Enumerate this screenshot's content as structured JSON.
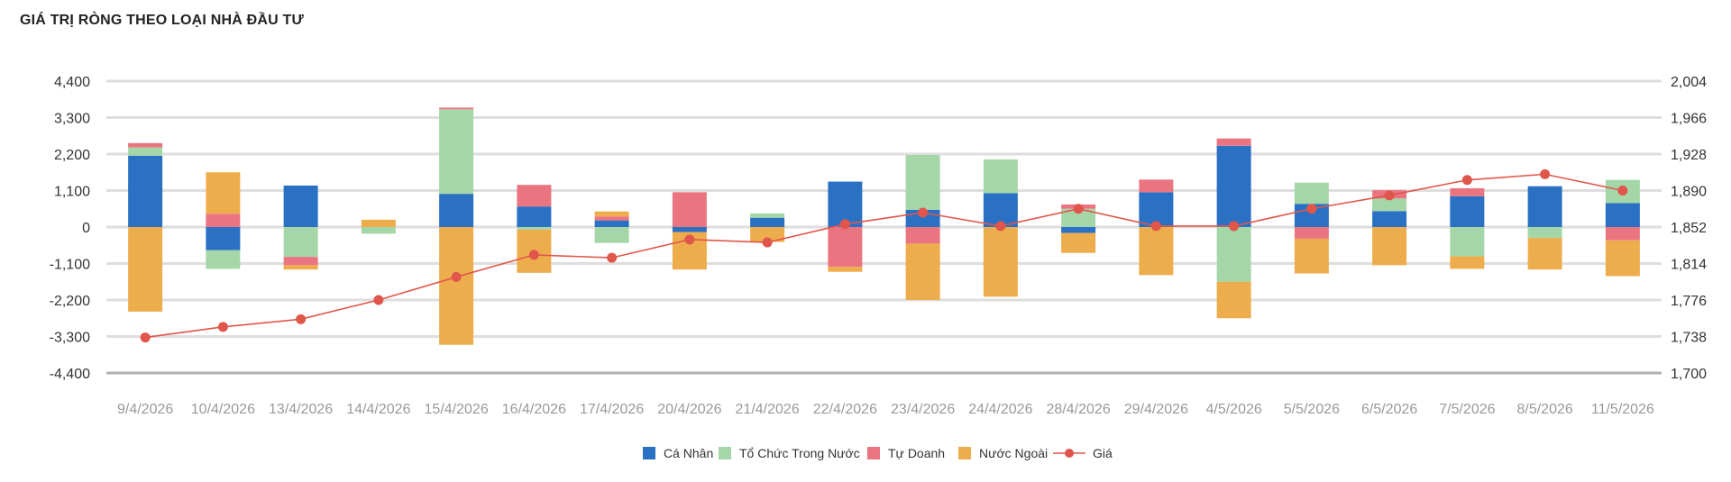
{
  "title": "GIÁ TRỊ RÒNG THEO LOẠI NHÀ ĐẦU TƯ",
  "chart_data": {
    "type": "bar",
    "stacked": true,
    "categories": [
      "9/4/2026",
      "10/4/2026",
      "13/4/2026",
      "14/4/2026",
      "15/4/2026",
      "16/4/2026",
      "17/4/2026",
      "20/4/2026",
      "21/4/2026",
      "22/4/2026",
      "23/4/2026",
      "24/4/2026",
      "28/4/2026",
      "29/4/2026",
      "4/5/2026",
      "5/5/2026",
      "6/5/2026",
      "7/5/2026",
      "8/5/2026",
      "11/5/2026"
    ],
    "y_left": {
      "ticks": [
        "4,400",
        "3,300",
        "2,200",
        "1,100",
        "0",
        "-1,100",
        "-2,200",
        "-3,300",
        "-4,400"
      ],
      "ylim": [
        -4400,
        4400
      ]
    },
    "y_right": {
      "ticks": [
        "2,004",
        "1,966",
        "1,928",
        "1,890",
        "1,852",
        "1,814",
        "1,776",
        "1,738",
        "1,700"
      ],
      "ylim": [
        1700,
        2004
      ]
    },
    "grid": true,
    "legend_position": "bottom",
    "series": [
      {
        "name": "Cá Nhân",
        "color": "#2a71c4",
        "values": [
          2150,
          -700,
          1250,
          0,
          1000,
          620,
          200,
          -150,
          280,
          1370,
          520,
          1020,
          -180,
          1050,
          2450,
          700,
          480,
          930,
          1230,
          720
        ]
      },
      {
        "name": "Tổ Chức Trong Nước",
        "color": "#a5d6a7",
        "values": [
          250,
          -560,
          -900,
          -200,
          2550,
          -80,
          -480,
          0,
          130,
          0,
          1650,
          1020,
          550,
          0,
          -1650,
          640,
          380,
          -880,
          -330,
          700
        ]
      },
      {
        "name": "Tự Doanh",
        "color": "#eb7481",
        "values": [
          130,
          400,
          -250,
          0,
          50,
          650,
          120,
          1050,
          0,
          -1200,
          -500,
          0,
          130,
          380,
          220,
          -350,
          250,
          240,
          0,
          -400
        ]
      },
      {
        "name": "Nước Ngoài",
        "color": "#eead4c",
        "values": [
          -2550,
          1250,
          -130,
          220,
          -3550,
          -1300,
          150,
          -1130,
          -450,
          -150,
          -1700,
          -2100,
          -600,
          -1450,
          -1100,
          -1050,
          -1150,
          -380,
          -950,
          -1080
        ]
      },
      {
        "name": "Giá",
        "color": "#e0564b",
        "type": "line",
        "axis": "right",
        "values": [
          1737,
          1748,
          1756,
          1776,
          1800,
          1823,
          1820,
          1839,
          1836,
          1855,
          1867,
          1853,
          1871,
          1853,
          1853,
          1871,
          1885,
          1901,
          1907,
          1890
        ]
      }
    ]
  }
}
